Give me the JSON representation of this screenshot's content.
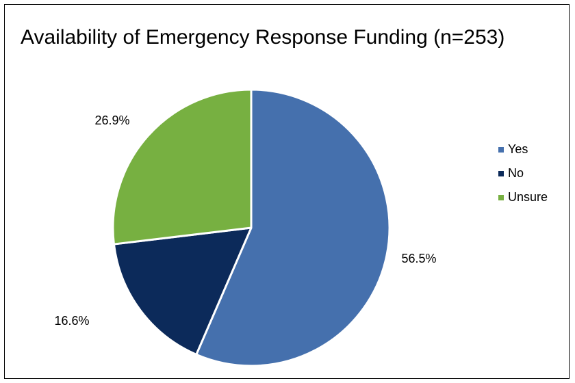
{
  "chart_data": {
    "type": "pie",
    "title": "Availability of Emergency Response Funding (n=253)",
    "categories": [
      "Yes",
      "No",
      "Unsure"
    ],
    "values": [
      56.5,
      16.6,
      26.9
    ],
    "labels": [
      "56.5%",
      "16.6%",
      "26.9%"
    ],
    "colors": [
      "#4570ad",
      "#0c2a5a",
      "#77b041"
    ],
    "legend_position": "right",
    "start_angle": "12 o'clock, clockwise"
  }
}
